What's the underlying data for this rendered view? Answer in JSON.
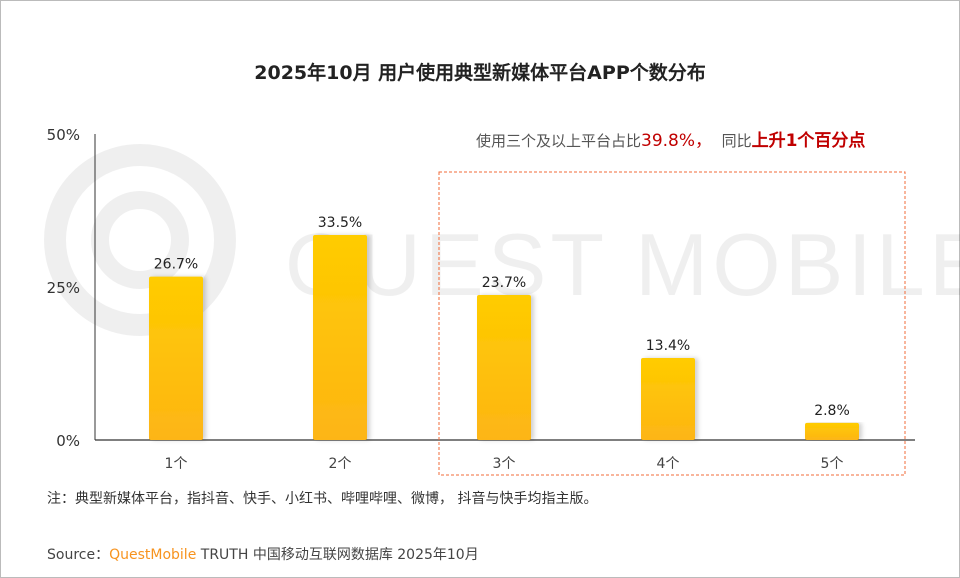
{
  "title": "2025年10月 用户使用典型新媒体平台APP个数分布",
  "watermark": "QUEST MOBILE",
  "callout": {
    "text1": "使用三个及以上平台占比",
    "value": "39.8%",
    "sep": "，",
    "text2": "同比",
    "change": "上升1个百分点"
  },
  "note": "注：典型新媒体平台，指抖音、快手、小红书、哔哩哔哩、微博， 抖音与快手均指主版。",
  "source": {
    "label": "Source：",
    "brand": "QuestMobile",
    "rest": " TRUTH 中国移动互联网数据库 2025年10月"
  },
  "colors": {
    "bar_top": "#ffcc00",
    "bar_bottom": "#fdb515",
    "highlight_box": "#f26b3a",
    "accent_red": "#c00000",
    "brand_orange": "#f7931e"
  },
  "chart_data": {
    "type": "bar",
    "categories": [
      "1个",
      "2个",
      "3个",
      "4个",
      "5个"
    ],
    "values": [
      26.7,
      33.5,
      23.7,
      13.4,
      2.8
    ],
    "labels": [
      "26.7%",
      "33.5%",
      "23.7%",
      "13.4%",
      "2.8%"
    ],
    "yticks": [
      "0%",
      "25%",
      "50%"
    ],
    "ytick_values": [
      0,
      25,
      50
    ],
    "ylim": [
      0,
      50
    ],
    "grid": false,
    "highlighted_categories": [
      "3个",
      "4个",
      "5个"
    ]
  }
}
